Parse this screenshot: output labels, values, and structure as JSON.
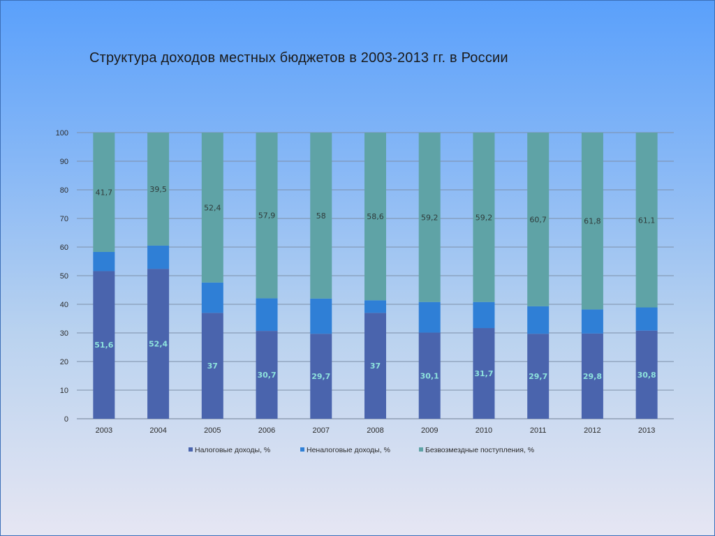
{
  "slide": {
    "title": "Структура доходов местных бюджетов в 2003-2013 гг. в России"
  },
  "chart_data": {
    "type": "bar",
    "stacked": true,
    "title": "",
    "xlabel": "",
    "ylabel": "",
    "ylim": [
      0,
      100
    ],
    "yticks": [
      0,
      10,
      20,
      30,
      40,
      50,
      60,
      70,
      80,
      90,
      100
    ],
    "grid": true,
    "legend_position": "bottom",
    "categories": [
      "2003",
      "2004",
      "2005",
      "2006",
      "2007",
      "2008",
      "2009",
      "2010",
      "2011",
      "2012",
      "2013"
    ],
    "series": [
      {
        "name": "Налоговые доходы, %",
        "color": "#4a64ad",
        "values": [
          51.6,
          52.4,
          37,
          30.7,
          29.7,
          37,
          30.1,
          31.7,
          29.7,
          29.8,
          30.8
        ],
        "labels": [
          "51,6",
          "52,4",
          "37",
          "30,7",
          "29,7",
          "37",
          "30,1",
          "31,7",
          "29,7",
          "29,8",
          "30,8"
        ]
      },
      {
        "name": "Неналоговые доходы, %",
        "color": "#2f7fd6",
        "values": [
          6.7,
          8.1,
          10.6,
          11.4,
          12.3,
          4.4,
          10.7,
          9.1,
          9.6,
          8.4,
          8.1
        ]
      },
      {
        "name": "Безвозмездные поступления, %",
        "color": "#5fa3a6",
        "values": [
          41.7,
          39.5,
          52.4,
          57.9,
          58,
          58.6,
          59.2,
          59.2,
          60.7,
          61.8,
          61.1
        ],
        "labels": [
          "41,7",
          "39,5",
          "52,4",
          "57,9",
          "58",
          "58,6",
          "59,2",
          "59,2",
          "60,7",
          "61,8",
          "61,1"
        ]
      }
    ]
  }
}
